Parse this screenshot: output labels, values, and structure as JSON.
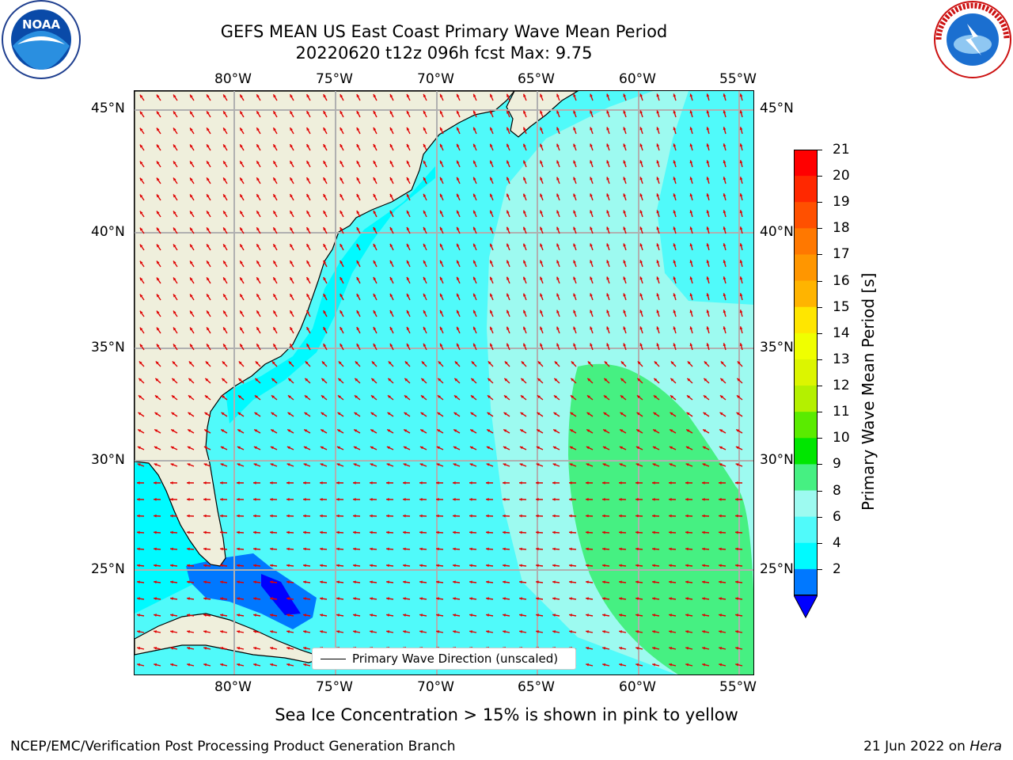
{
  "header": {
    "title_line1": "GEFS MEAN US East Coast Primary Wave Mean Period",
    "title_line2": "20220620 t12z 096h fcst   Max: 9.75"
  },
  "logos": {
    "left_text": "NOAA",
    "left_ring_text": "NATIONAL OCEANIC AND ATMOSPHERIC ADMINISTRATION · U.S. DEPARTMENT OF COMMERCE",
    "right_ring_text": "NATIONAL WEATHER SERVICE"
  },
  "axes": {
    "lon_labels": [
      "80°W",
      "75°W",
      "70°W",
      "65°W",
      "60°W",
      "55°W"
    ],
    "lat_labels": [
      "45°N",
      "40°N",
      "35°N",
      "30°N",
      "25°N"
    ]
  },
  "legend": {
    "label": "Primary Wave Direction (unscaled)"
  },
  "colorbar": {
    "label": "Primary Wave Mean Period [s]",
    "ticks": [
      "21",
      "20",
      "19",
      "18",
      "17",
      "16",
      "15",
      "14",
      "13",
      "12",
      "11",
      "10",
      "9",
      "8",
      "6",
      "4",
      "2"
    ],
    "colors": [
      "#ff0000",
      "#ff2800",
      "#ff5000",
      "#ff7800",
      "#ff9600",
      "#ffb400",
      "#ffe600",
      "#f0ff00",
      "#dcf500",
      "#b4f000",
      "#5aeb00",
      "#00e600",
      "#46f082",
      "#9dfaf0",
      "#50fafa",
      "#00faff",
      "#0078ff"
    ],
    "extend_color": "#0000ff"
  },
  "note": "Sea Ice Concentration > 15% is shown in pink to yellow",
  "footer": {
    "left": "NCEP/EMC/Verification Post Processing Product Generation Branch",
    "right_date": "21 Jun 2022 on ",
    "right_machine": "Hera"
  }
}
